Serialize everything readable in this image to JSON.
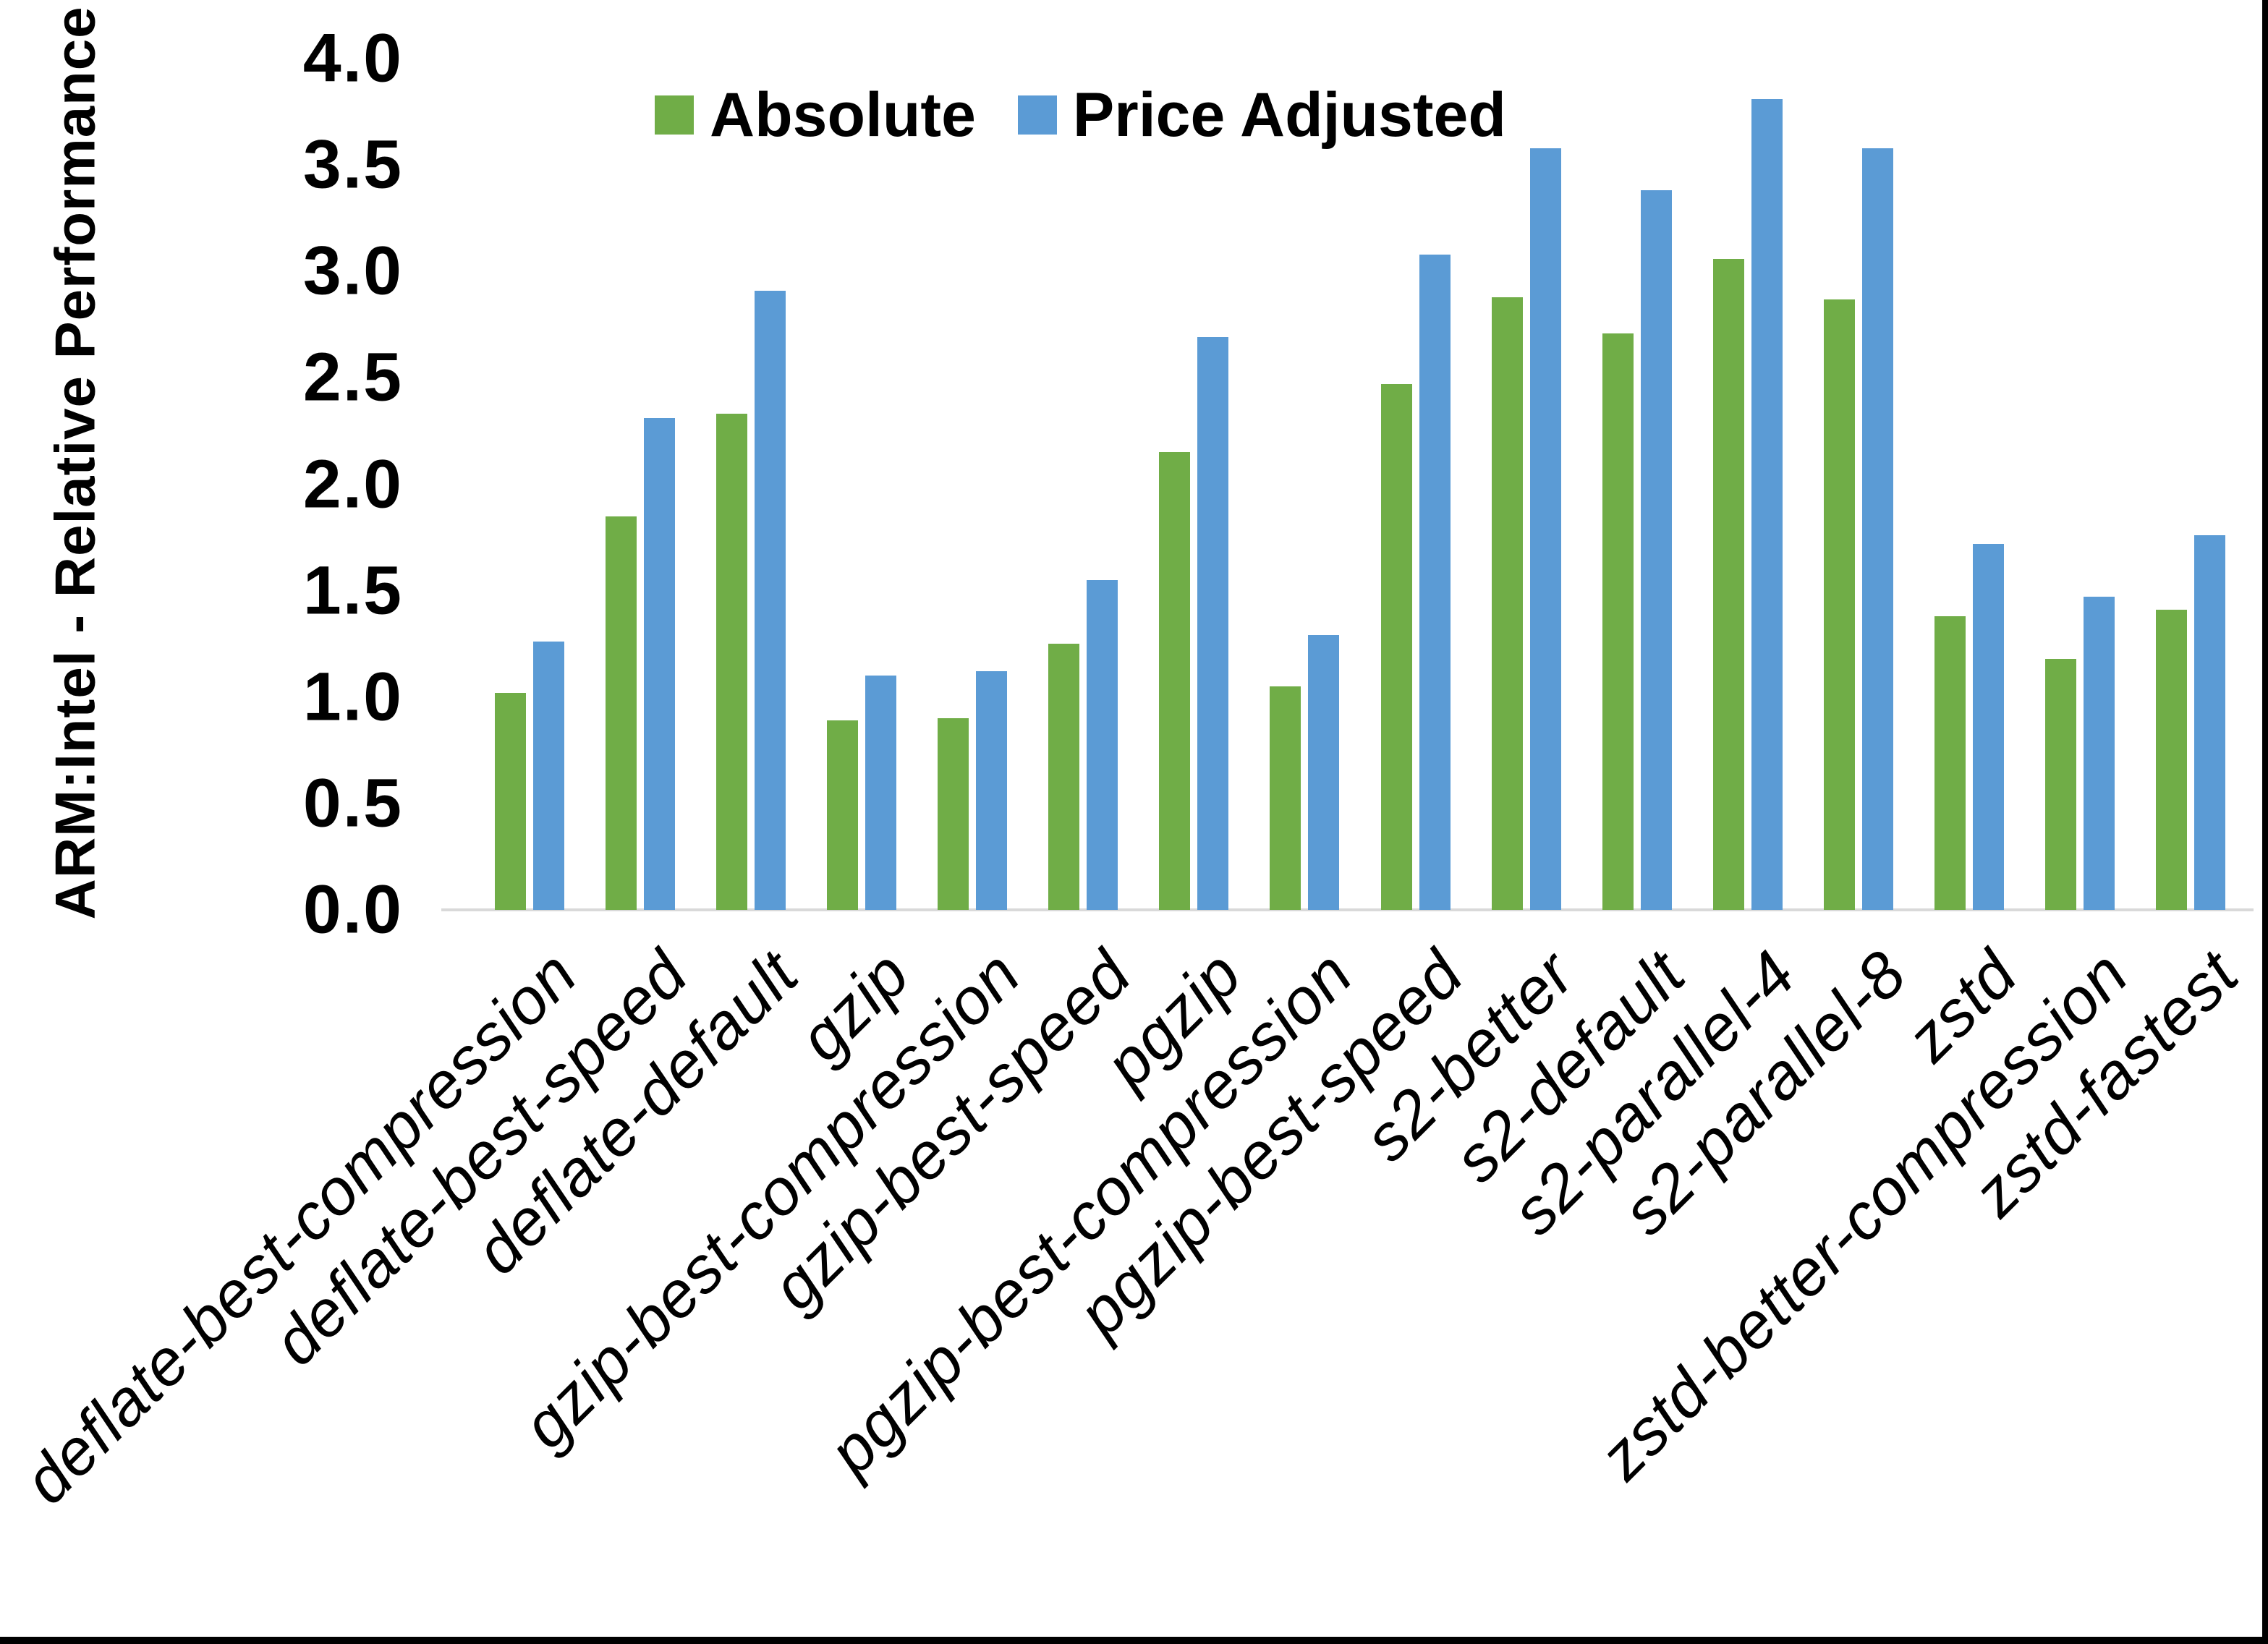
{
  "figure": {
    "background": "#ffffff",
    "axis_line_color": "#d9d9d9",
    "border_color": "#000000",
    "ylabel": "ARM:Intel - Relative Performance"
  },
  "legend": {
    "position": "top-center",
    "items": [
      {
        "label": "Absolute",
        "color": "#70AD47"
      },
      {
        "label": "Price Adjusted",
        "color": "#5B9BD5"
      }
    ]
  },
  "chart_data": {
    "type": "bar",
    "title": "",
    "xlabel": "",
    "ylabel": "ARM:Intel - Relative Performance",
    "ylim": [
      0.0,
      4.0
    ],
    "ytick_step": 0.5,
    "yticks": [
      "0.0",
      "0.5",
      "1.0",
      "1.5",
      "2.0",
      "2.5",
      "3.0",
      "3.5",
      "4.0"
    ],
    "grid": false,
    "legend_position": "top-center",
    "categories": [
      "deflate-best-compression",
      "deflate-best-speed",
      "deflate-default",
      "gzip",
      "gzip-best-compression",
      "gzip-best-speed",
      "pgzip",
      "pgzip-best-compression",
      "pgzip-best-speed",
      "s2-better",
      "s2-default",
      "s2-parallel-4",
      "s2-parallel-8",
      "zstd",
      "zstd-better-compression",
      "zstd-fastest"
    ],
    "series": [
      {
        "name": "Absolute",
        "color": "#70AD47",
        "values": [
          1.02,
          1.85,
          2.33,
          0.89,
          0.9,
          1.25,
          2.15,
          1.05,
          2.47,
          2.88,
          2.71,
          3.06,
          2.87,
          1.38,
          1.18,
          1.41
        ]
      },
      {
        "name": "Price Adjusted",
        "color": "#5B9BD5",
        "values": [
          1.26,
          2.31,
          2.91,
          1.1,
          1.12,
          1.55,
          2.69,
          1.29,
          3.08,
          3.58,
          3.38,
          3.81,
          3.58,
          1.72,
          1.47,
          1.76
        ]
      }
    ]
  }
}
